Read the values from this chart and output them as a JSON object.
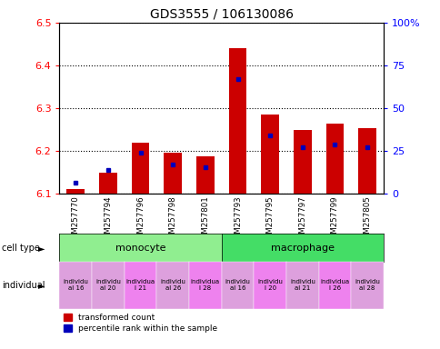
{
  "title": "GDS3555 / 106130086",
  "samples": [
    "GSM257770",
    "GSM257794",
    "GSM257796",
    "GSM257798",
    "GSM257801",
    "GSM257793",
    "GSM257795",
    "GSM257797",
    "GSM257799",
    "GSM257805"
  ],
  "red_values": [
    6.11,
    6.15,
    6.22,
    6.195,
    6.188,
    6.44,
    6.285,
    6.25,
    6.263,
    6.253
  ],
  "blue_values": [
    6.125,
    6.155,
    6.195,
    6.168,
    6.162,
    6.368,
    6.237,
    6.208,
    6.215,
    6.208
  ],
  "ymin": 6.1,
  "ymax": 6.5,
  "yticks": [
    6.1,
    6.2,
    6.3,
    6.4,
    6.5
  ],
  "right_yticks": [
    0,
    25,
    50,
    75,
    100
  ],
  "right_ytick_labels": [
    "0",
    "25",
    "50",
    "75",
    "100%"
  ],
  "monocyte_color": "#90EE90",
  "macrophage_color": "#44DD66",
  "bar_color": "#CC0000",
  "blue_color": "#0000BB",
  "xticklabel_bg": "#C8C8C8",
  "individual_colors": [
    "#DDA0DD",
    "#DDA0DD",
    "#EE82EE",
    "#DDA0DD",
    "#EE82EE",
    "#DDA0DD",
    "#EE82EE",
    "#DDA0DD",
    "#EE82EE",
    "#DDA0DD"
  ],
  "individual_labels": [
    "individu\nal 16",
    "individu\nal 20",
    "individua\nl 21",
    "individu\nal 26",
    "individua\nl 28",
    "individu\nal 16",
    "individu\nl 20",
    "individu\nal 21",
    "individua\nl 26",
    "individu\nal 28"
  ],
  "bar_width": 0.55
}
